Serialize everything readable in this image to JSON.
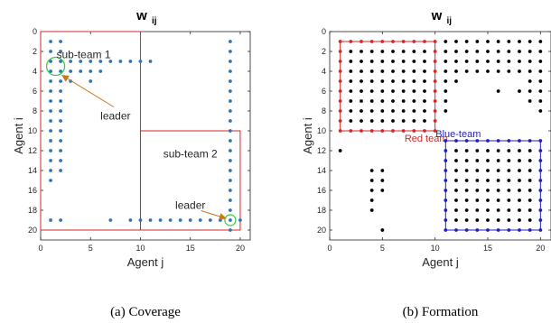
{
  "chart_data": [
    {
      "type": "scatter",
      "title": "w",
      "title_sub": "ij",
      "xlabel": "Agent j",
      "ylabel": "Agent i",
      "xlim": [
        0,
        21
      ],
      "ylim": [
        0,
        21
      ],
      "y_inverted": true,
      "xticks": [
        0,
        5,
        10,
        15,
        20
      ],
      "yticks": [
        0,
        2,
        4,
        6,
        8,
        10,
        12,
        14,
        16,
        18,
        20
      ],
      "point_color": "#2f74b5",
      "caption": "(a) Coverage",
      "points": [
        [
          1,
          1
        ],
        [
          2,
          1
        ],
        [
          1,
          2
        ],
        [
          2,
          2
        ],
        [
          1,
          3
        ],
        [
          2,
          3
        ],
        [
          3,
          3
        ],
        [
          4,
          3
        ],
        [
          5,
          3
        ],
        [
          6,
          3
        ],
        [
          7,
          3
        ],
        [
          8,
          3
        ],
        [
          9,
          3
        ],
        [
          10,
          3
        ],
        [
          11,
          3
        ],
        [
          1,
          4
        ],
        [
          2,
          4
        ],
        [
          3,
          4
        ],
        [
          4,
          4
        ],
        [
          5,
          4
        ],
        [
          6,
          4
        ],
        [
          1,
          5
        ],
        [
          2,
          5
        ],
        [
          3,
          5
        ],
        [
          5,
          5
        ],
        [
          1,
          6
        ],
        [
          2,
          6
        ],
        [
          1,
          7
        ],
        [
          2,
          7
        ],
        [
          1,
          8
        ],
        [
          2,
          8
        ],
        [
          1,
          9
        ],
        [
          2,
          9
        ],
        [
          1,
          10
        ],
        [
          2,
          10
        ],
        [
          1,
          11
        ],
        [
          2,
          11
        ],
        [
          1,
          12
        ],
        [
          2,
          12
        ],
        [
          1,
          13
        ],
        [
          2,
          13
        ],
        [
          1,
          14
        ],
        [
          2,
          14
        ],
        [
          1,
          15
        ],
        [
          1,
          19
        ],
        [
          2,
          19
        ],
        [
          7,
          19
        ],
        [
          9,
          19
        ],
        [
          10,
          19
        ],
        [
          11,
          19
        ],
        [
          12,
          19
        ],
        [
          13,
          19
        ],
        [
          14,
          19
        ],
        [
          15,
          19
        ],
        [
          16,
          19
        ],
        [
          17,
          19
        ],
        [
          18,
          19
        ],
        [
          19,
          19
        ],
        [
          20,
          19
        ],
        [
          19,
          1
        ],
        [
          19,
          2
        ],
        [
          19,
          3
        ],
        [
          19,
          4
        ],
        [
          19,
          5
        ],
        [
          19,
          6
        ],
        [
          19,
          7
        ],
        [
          19,
          8
        ],
        [
          19,
          9
        ],
        [
          19,
          10
        ],
        [
          19,
          11
        ],
        [
          19,
          12
        ],
        [
          19,
          13
        ],
        [
          19,
          14
        ],
        [
          19,
          15
        ],
        [
          19,
          16
        ],
        [
          19,
          17
        ],
        [
          19,
          18
        ],
        [
          19,
          20
        ]
      ],
      "rectangles": [
        {
          "x": [
            0,
            10
          ],
          "y": [
            0,
            20
          ],
          "color": "#d62728"
        },
        {
          "x": [
            10,
            20
          ],
          "y": [
            10,
            20
          ],
          "color": "#d62728"
        }
      ],
      "annotations": [
        {
          "text": "sub-team 1",
          "x": 4.3,
          "y": 2.3
        },
        {
          "text": "sub-team 2",
          "x": 15,
          "y": 12.3
        },
        {
          "text": "leader",
          "x": 7.5,
          "y": 8.5,
          "arrow_to": [
            1.8,
            3.6
          ]
        },
        {
          "text": "leader",
          "x": 15,
          "y": 17.5,
          "arrow_to": [
            19,
            19
          ]
        }
      ],
      "highlights": [
        {
          "x": 1.5,
          "y": 3.5,
          "color": "#2ecc40"
        },
        {
          "x": 19,
          "y": 19,
          "color": "#2ecc40"
        }
      ]
    },
    {
      "type": "scatter",
      "title": "w",
      "title_sub": "ij",
      "xlabel": "Agent j",
      "ylabel": "Agent i",
      "xlim": [
        0,
        21
      ],
      "ylim": [
        0,
        21
      ],
      "y_inverted": true,
      "xticks": [
        0,
        5,
        10,
        15,
        20
      ],
      "yticks": [
        0,
        2,
        4,
        6,
        8,
        10,
        12,
        14,
        16,
        18,
        20
      ],
      "point_color": "#000000",
      "caption": "(b) Formation",
      "teams": [
        {
          "name": "Red team",
          "x": [
            1,
            10
          ],
          "y": [
            1,
            10
          ],
          "color": "#d62728"
        },
        {
          "name": "Blue-team",
          "x": [
            11,
            20
          ],
          "y": [
            11,
            20
          ],
          "color": "#1f1fbf"
        }
      ],
      "extra_points": [
        [
          11,
          1
        ],
        [
          12,
          1
        ],
        [
          13,
          1
        ],
        [
          14,
          1
        ],
        [
          15,
          1
        ],
        [
          16,
          1
        ],
        [
          17,
          1
        ],
        [
          18,
          1
        ],
        [
          19,
          1
        ],
        [
          20,
          1
        ],
        [
          11,
          2
        ],
        [
          12,
          2
        ],
        [
          13,
          2
        ],
        [
          14,
          2
        ],
        [
          15,
          2
        ],
        [
          16,
          2
        ],
        [
          17,
          2
        ],
        [
          18,
          2
        ],
        [
          19,
          2
        ],
        [
          20,
          2
        ],
        [
          11,
          3
        ],
        [
          12,
          3
        ],
        [
          13,
          3
        ],
        [
          14,
          3
        ],
        [
          15,
          3
        ],
        [
          16,
          3
        ],
        [
          17,
          3
        ],
        [
          18,
          3
        ],
        [
          19,
          3
        ],
        [
          20,
          3
        ],
        [
          11,
          4
        ],
        [
          12,
          4
        ],
        [
          13,
          4
        ],
        [
          14,
          4
        ],
        [
          15,
          4
        ],
        [
          16,
          4
        ],
        [
          17,
          4
        ],
        [
          18,
          4
        ],
        [
          19,
          4
        ],
        [
          20,
          4
        ],
        [
          11,
          5
        ],
        [
          12,
          5
        ],
        [
          19,
          5
        ],
        [
          20,
          5
        ],
        [
          11,
          6
        ],
        [
          16,
          6
        ],
        [
          18,
          6
        ],
        [
          19,
          6
        ],
        [
          20,
          6
        ],
        [
          11,
          7
        ],
        [
          19,
          7
        ],
        [
          20,
          7
        ],
        [
          11,
          8
        ],
        [
          20,
          8
        ],
        [
          1,
          12
        ],
        [
          4,
          14
        ],
        [
          5,
          14
        ],
        [
          4,
          15
        ],
        [
          5,
          15
        ],
        [
          4,
          16
        ],
        [
          5,
          16
        ],
        [
          4,
          17
        ],
        [
          4,
          18
        ],
        [
          5,
          20
        ]
      ]
    }
  ]
}
